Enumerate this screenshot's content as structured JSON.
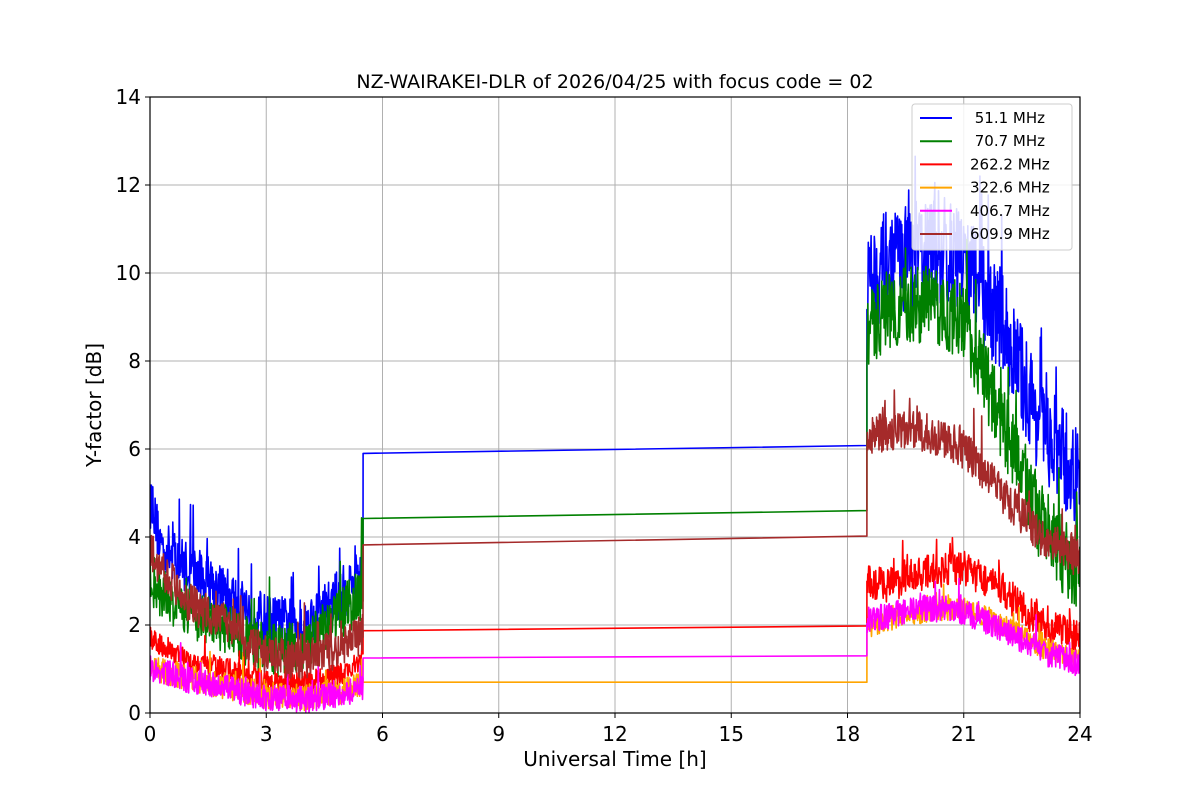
{
  "chart_data": {
    "type": "line",
    "title": "NZ-WAIRAKEI-DLR of 2026/04/25 with focus code = 02",
    "xlabel": "Universal Time [h]",
    "ylabel": "Y-factor [dB]",
    "xlim": [
      0,
      24
    ],
    "ylim": [
      0,
      14
    ],
    "xticks": [
      0,
      3,
      6,
      9,
      12,
      15,
      18,
      21,
      24
    ],
    "yticks": [
      0,
      2,
      4,
      6,
      8,
      10,
      12,
      14
    ],
    "grid": true,
    "legend_position": "top-right",
    "gap": [
      5.5,
      18.5
    ],
    "series": [
      {
        "name": " 51.1 MHz",
        "color": "#0000ff",
        "noise_low": 0.6,
        "noise_high": 1.2,
        "points": [
          [
            0,
            4.8
          ],
          [
            0.3,
            3.8
          ],
          [
            1,
            3.3
          ],
          [
            2,
            2.7
          ],
          [
            3,
            2.1
          ],
          [
            4,
            2.0
          ],
          [
            4.8,
            2.6
          ],
          [
            5.5,
            3.2
          ],
          [
            5.5,
            5.9
          ],
          [
            18.5,
            6.08
          ],
          [
            18.5,
            9.8
          ],
          [
            19,
            10.2
          ],
          [
            20,
            10.5
          ],
          [
            21,
            10.3
          ],
          [
            22,
            8.8
          ],
          [
            23,
            6.5
          ],
          [
            24,
            5.2
          ]
        ]
      },
      {
        "name": " 70.7 MHz",
        "color": "#008000",
        "noise_low": 0.6,
        "noise_high": 0.9,
        "points": [
          [
            0,
            3.1
          ],
          [
            0.3,
            2.7
          ],
          [
            1,
            2.3
          ],
          [
            2,
            1.9
          ],
          [
            3,
            1.4
          ],
          [
            4,
            1.5
          ],
          [
            4.8,
            2.2
          ],
          [
            5.5,
            2.7
          ],
          [
            5.5,
            4.42
          ],
          [
            18.5,
            4.6
          ],
          [
            18.5,
            8.6
          ],
          [
            19,
            9.2
          ],
          [
            20,
            9.3
          ],
          [
            21,
            8.9
          ],
          [
            22,
            6.6
          ],
          [
            23,
            4.3
          ],
          [
            24,
            3.0
          ]
        ]
      },
      {
        "name": "262.2 MHz",
        "color": "#ff0000",
        "noise_low": 0.25,
        "noise_high": 0.4,
        "points": [
          [
            0,
            1.7
          ],
          [
            1,
            1.2
          ],
          [
            2,
            1.0
          ],
          [
            3,
            0.7
          ],
          [
            4,
            0.7
          ],
          [
            5,
            0.9
          ],
          [
            5.5,
            1.2
          ],
          [
            5.5,
            1.87
          ],
          [
            18.5,
            1.98
          ],
          [
            18.5,
            3.0
          ],
          [
            19,
            2.9
          ],
          [
            20,
            3.2
          ],
          [
            21,
            3.3
          ],
          [
            22,
            2.8
          ],
          [
            23,
            2.0
          ],
          [
            24,
            1.7
          ]
        ]
      },
      {
        "name": "322.6 MHz",
        "color": "#ffa500",
        "noise_low": 0.3,
        "noise_high": 0.25,
        "points": [
          [
            0,
            1.05
          ],
          [
            1,
            0.8
          ],
          [
            2,
            0.6
          ],
          [
            3,
            0.4
          ],
          [
            4,
            0.35
          ],
          [
            5,
            0.5
          ],
          [
            5.5,
            0.7
          ],
          [
            18.5,
            0.7
          ],
          [
            18.5,
            1.9
          ],
          [
            19,
            2.1
          ],
          [
            20,
            2.3
          ],
          [
            21,
            2.4
          ],
          [
            22,
            2.0
          ],
          [
            23,
            1.5
          ],
          [
            24,
            1.2
          ]
        ]
      },
      {
        "name": "406.7 MHz",
        "color": "#ff00ff",
        "noise_low": 0.3,
        "noise_high": 0.3,
        "points": [
          [
            0,
            1.0
          ],
          [
            1,
            0.75
          ],
          [
            2,
            0.55
          ],
          [
            3,
            0.35
          ],
          [
            4,
            0.3
          ],
          [
            5,
            0.45
          ],
          [
            5.5,
            0.6
          ],
          [
            5.5,
            1.25
          ],
          [
            18.5,
            1.3
          ],
          [
            18.5,
            2.1
          ],
          [
            19,
            2.2
          ],
          [
            20,
            2.4
          ],
          [
            21,
            2.3
          ],
          [
            22,
            1.9
          ],
          [
            23,
            1.4
          ],
          [
            24,
            1.1
          ]
        ]
      },
      {
        "name": "609.9 MHz",
        "color": "#a52a2a",
        "noise_low": 0.45,
        "noise_high": 0.45,
        "points": [
          [
            0,
            3.7
          ],
          [
            0.3,
            3.3
          ],
          [
            1,
            2.5
          ],
          [
            2,
            2.0
          ],
          [
            3,
            1.3
          ],
          [
            4,
            1.2
          ],
          [
            5,
            1.5
          ],
          [
            5.5,
            1.8
          ],
          [
            5.5,
            3.82
          ],
          [
            18.5,
            4.02
          ],
          [
            18.5,
            6.3
          ],
          [
            19,
            6.4
          ],
          [
            20,
            6.4
          ],
          [
            21,
            6.0
          ],
          [
            22,
            5.0
          ],
          [
            23,
            4.0
          ],
          [
            24,
            3.5
          ]
        ]
      }
    ]
  }
}
